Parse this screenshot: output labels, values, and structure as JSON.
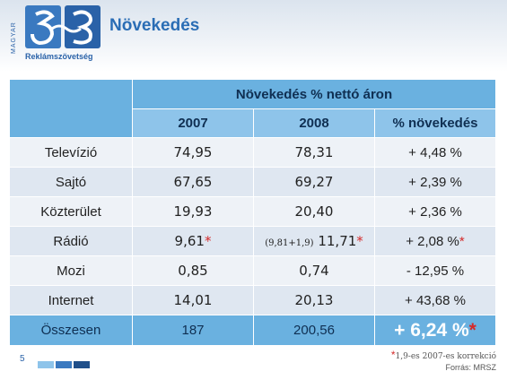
{
  "header": {
    "title": "Növekedés",
    "logo_side_text": "MAGYAR",
    "logo_name": "Reklámszövetség"
  },
  "table": {
    "span_header": "Növekedés % nettó áron",
    "col_headers": [
      "2007",
      "2008",
      "% növekedés"
    ],
    "rows": [
      {
        "label": "Televízió",
        "y2007": "74,95",
        "y2008": "78,31",
        "growth": "+ 4,48 %"
      },
      {
        "label": "Sajtó",
        "y2007": "67,65",
        "y2008": "69,27",
        "growth": "+ 2,39 %"
      },
      {
        "label": "Közterület",
        "y2007": "19,93",
        "y2008": "20,40",
        "growth": "+ 2,36 %"
      },
      {
        "label": "Rádió",
        "y2007": "9,61",
        "y2007_star": "*",
        "y2008_note": "(9,81+1,9)",
        "y2008": "11,71",
        "y2008_star": "*",
        "growth": "+ 2,08 %",
        "growth_star": "*"
      },
      {
        "label": "Mozi",
        "y2007": "0,85",
        "y2008": "0,74",
        "growth": "- 12,95 %"
      },
      {
        "label": "Internet",
        "y2007": "14,01",
        "y2008": "20,13",
        "growth": "+ 43,68 %"
      }
    ],
    "total": {
      "label": "Összesen",
      "y2007": "187",
      "y2008": "200,56",
      "growth": "+ 6,24 %",
      "growth_star": "*"
    }
  },
  "footer": {
    "page_number": "5",
    "footnote_star": "*",
    "footnote_text": "1,9-es 2007-es korrekció",
    "source": "Forrás: MRSZ"
  },
  "colors": {
    "header_blue": "#6ab1e0",
    "positive": "#2aa45a",
    "negative": "#d42a2a",
    "title": "#2a6db5"
  }
}
